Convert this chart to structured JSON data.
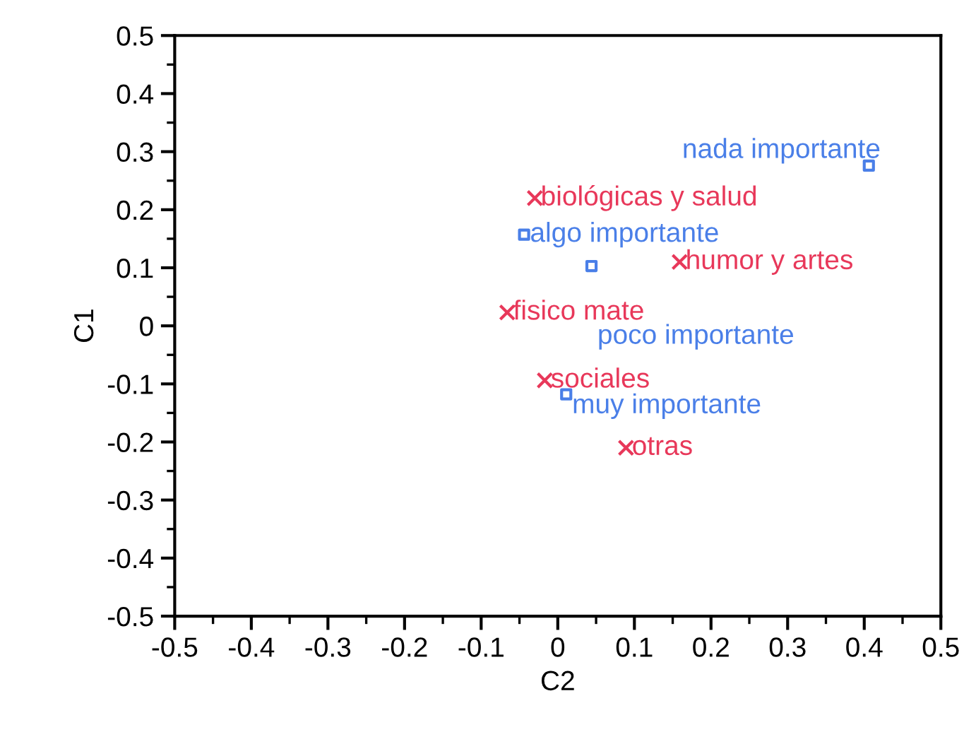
{
  "chart_data": {
    "type": "scatter",
    "xlabel": "C2",
    "ylabel": "C1",
    "xlim": [
      -0.5,
      0.5
    ],
    "ylim": [
      -0.5,
      0.5
    ],
    "xticks": [
      -0.5,
      {
        "value": -0.45,
        "label": null
      },
      -0.4,
      {
        "value": -0.35,
        "label": null
      },
      -0.3,
      {
        "value": -0.25,
        "label": null
      },
      -0.2,
      {
        "value": -0.15,
        "label": null
      },
      -0.1,
      {
        "value": -0.05,
        "label": null
      },
      0,
      {
        "value": 0.05,
        "label": null
      },
      0.1,
      {
        "value": 0.15,
        "label": null
      },
      0.2,
      {
        "value": 0.25,
        "label": null
      },
      0.3,
      {
        "value": 0.35,
        "label": null
      },
      0.4,
      {
        "value": 0.45,
        "label": null
      },
      0.5
    ],
    "yticks": [
      -0.5,
      {
        "value": -0.45,
        "label": null
      },
      -0.4,
      {
        "value": -0.35,
        "label": null
      },
      -0.3,
      {
        "value": -0.25,
        "label": null
      },
      -0.2,
      {
        "value": -0.15,
        "label": null
      },
      -0.1,
      {
        "value": -0.05,
        "label": null
      },
      0,
      {
        "value": 0.05,
        "label": null
      },
      0.1,
      {
        "value": 0.15,
        "label": null
      },
      0.2,
      {
        "value": 0.25,
        "label": null
      },
      0.3,
      {
        "value": 0.35,
        "label": null
      },
      0.4,
      {
        "value": 0.45,
        "label": null
      },
      0.5
    ],
    "grid": false,
    "legend": false,
    "series": [
      {
        "color": "#e8385a",
        "marker": "cross",
        "x": [
          -0.03,
          0.159,
          -0.066,
          -0.017,
          0.089
        ],
        "values": [
          0.22,
          0.11,
          0.023,
          -0.094,
          -0.21
        ]
      },
      {
        "color": "#4a7fe8",
        "marker": "square",
        "x": [
          0.406,
          -0.044,
          0.044,
          0.011
        ],
        "values": [
          0.276,
          0.157,
          0.103,
          -0.118
        ]
      }
    ],
    "annotations": [
      {
        "text": "biológicas y salud",
        "x": -0.03,
        "y": 0.22
      },
      {
        "text": "humor y artes",
        "x": 0.159,
        "y": 0.11
      },
      {
        "text": "fisico mate",
        "x": -0.066,
        "y": 0.023
      },
      {
        "text": "sociales",
        "x": -0.017,
        "y": -0.094
      },
      {
        "text": "otras",
        "x": 0.089,
        "y": -0.21
      },
      {
        "text": "nada importante",
        "x": 0.406,
        "y": 0.276
      },
      {
        "text": "algo importante",
        "x": -0.044,
        "y": 0.157
      },
      {
        "text": "poco importante",
        "x": 0.044,
        "y": 0.103
      },
      {
        "text": "muy importante",
        "x": 0.011,
        "y": -0.118
      }
    ]
  }
}
